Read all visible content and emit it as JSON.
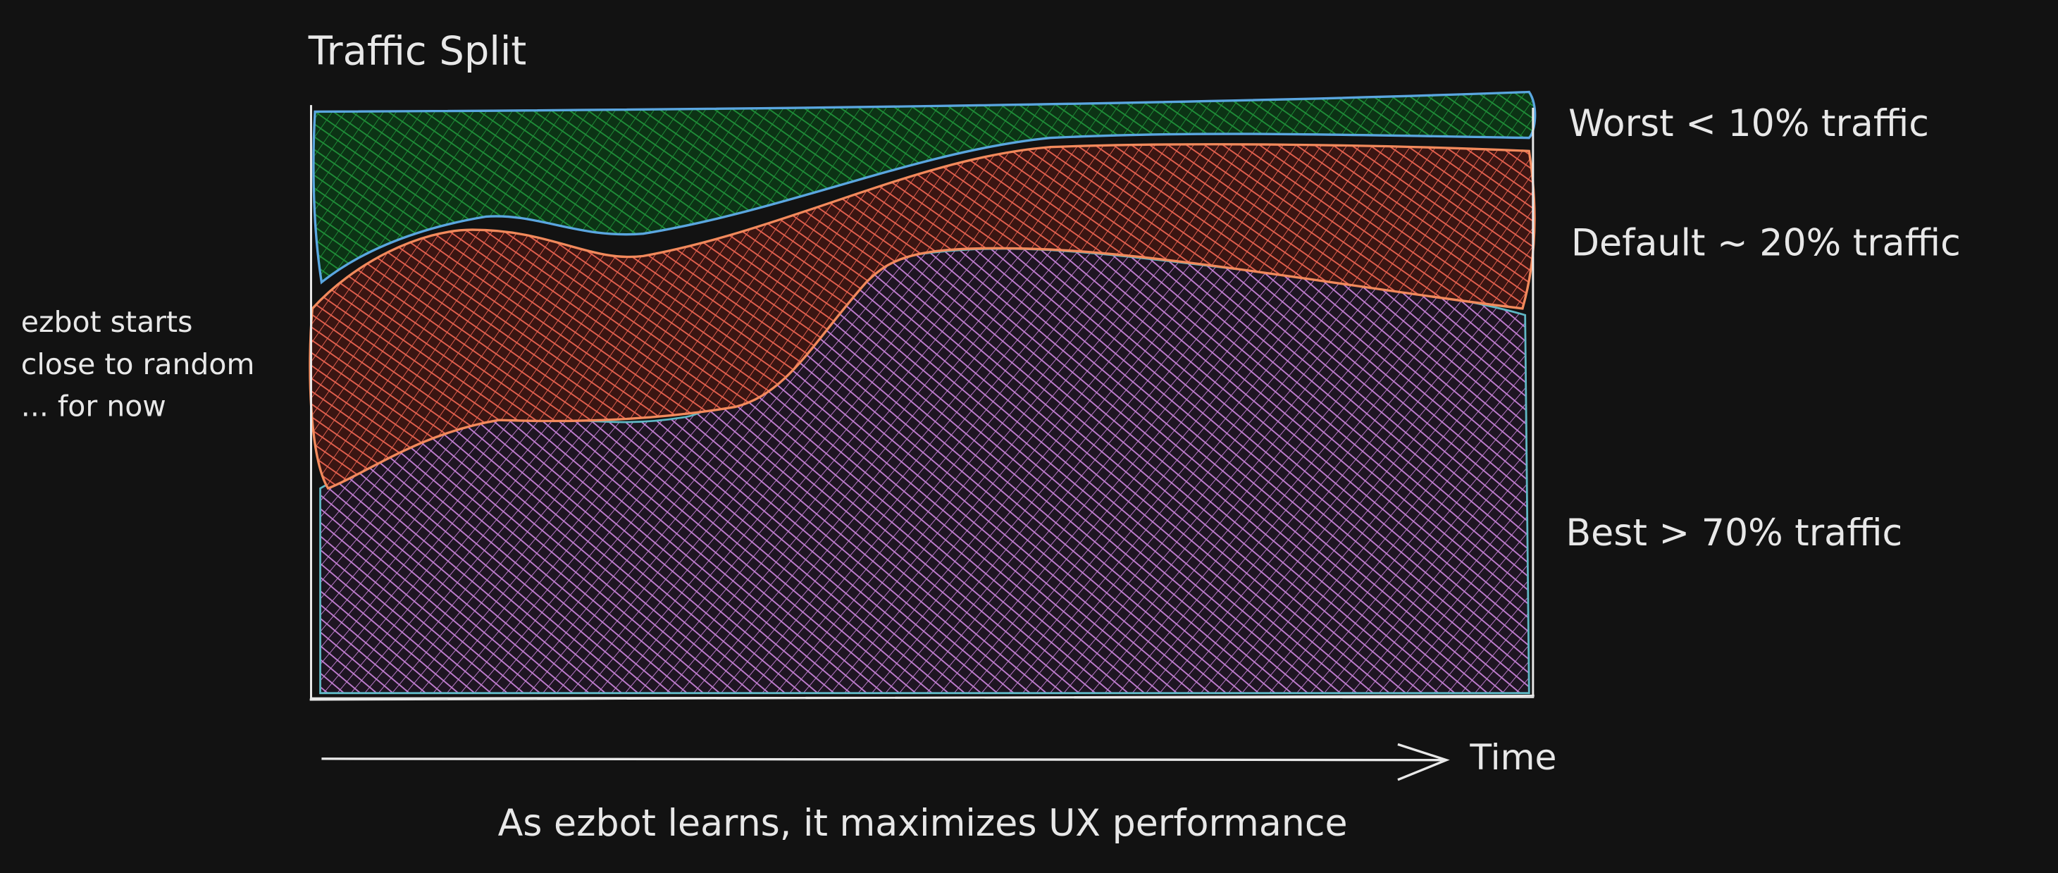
{
  "title": "Traffic Split",
  "labels": [
    "Worst < 10% traffic",
    "Default ~ 20% traffic",
    "Best > 70% traffic"
  ],
  "annotation": [
    "ezbot starts",
    "close to random",
    "... for now"
  ],
  "axis_label": "Time",
  "caption": "As ezbot learns, it maximizes UX performance"
}
